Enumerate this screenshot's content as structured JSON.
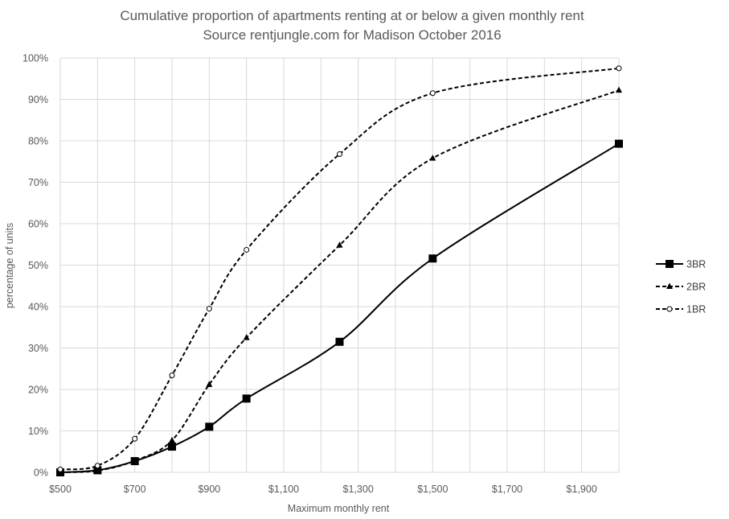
{
  "chart_data": {
    "type": "line",
    "title": "Cumulative proportion of apartments renting at or below a given monthly rent",
    "subtitle": "Source rentjungle.com for Madison October 2016",
    "xlabel": "Maximum monthly rent",
    "ylabel": "percentage of units",
    "xlim": [
      500,
      2000
    ],
    "ylim": [
      0,
      100
    ],
    "x_ticks": [
      500,
      700,
      900,
      1100,
      1300,
      1500,
      1700,
      1900
    ],
    "x_tick_labels": [
      "$500",
      "$700",
      "$900",
      "$1,100",
      "$1,300",
      "$1,500",
      "$1,700",
      "$1,900"
    ],
    "y_ticks": [
      0,
      10,
      20,
      30,
      40,
      50,
      60,
      70,
      80,
      90,
      100
    ],
    "y_tick_labels": [
      "0%",
      "10%",
      "20%",
      "30%",
      "40%",
      "50%",
      "60%",
      "70%",
      "80%",
      "90%",
      "100%"
    ],
    "grid": true,
    "legend_position": "right",
    "series": [
      {
        "name": "3BR",
        "marker": "square",
        "dash": "solid",
        "color": "#000000",
        "points": [
          [
            500,
            0
          ],
          [
            600,
            0.5
          ],
          [
            700,
            2.7
          ],
          [
            800,
            6.2
          ],
          [
            900,
            11.0
          ],
          [
            1000,
            17.8
          ],
          [
            1250,
            31.5
          ],
          [
            1500,
            51.6
          ],
          [
            2000,
            79.3
          ]
        ]
      },
      {
        "name": "2BR",
        "marker": "triangle",
        "dash": "dashed",
        "color": "#000000",
        "points": [
          [
            500,
            0
          ],
          [
            600,
            0.4
          ],
          [
            700,
            2.8
          ],
          [
            800,
            7.7
          ],
          [
            900,
            21.2
          ],
          [
            1000,
            32.5
          ],
          [
            1250,
            54.8
          ],
          [
            1500,
            75.8
          ],
          [
            2000,
            92.2
          ]
        ]
      },
      {
        "name": "1BR",
        "marker": "circle",
        "dash": "dashed",
        "color": "#000000",
        "points": [
          [
            500,
            0.7
          ],
          [
            600,
            1.6
          ],
          [
            700,
            8.1
          ],
          [
            800,
            23.4
          ],
          [
            900,
            39.5
          ],
          [
            1000,
            53.7
          ],
          [
            1250,
            76.8
          ],
          [
            1500,
            91.5
          ],
          [
            2000,
            97.5
          ]
        ]
      }
    ]
  }
}
